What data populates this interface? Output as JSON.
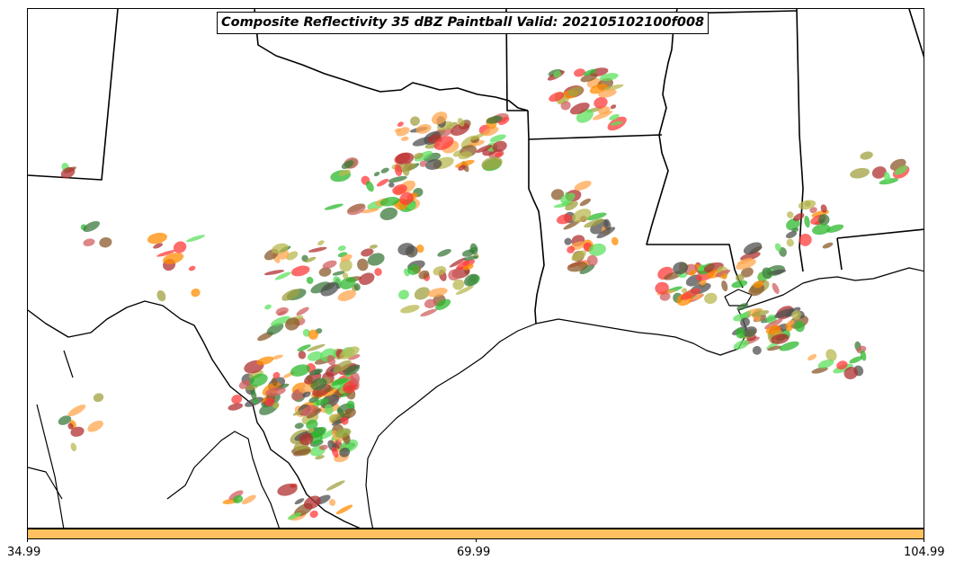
{
  "map": {
    "title": "Composite Reflectivity 35 dBZ Paintball Valid: 202105102100f008",
    "field": "Composite Reflectivity",
    "threshold_dbz": 35,
    "valid_time": "202105102100",
    "forecast_hour": "f008",
    "region": "Texas and Louisiana Gulf Coast",
    "basemap": "state boundaries and coastline",
    "member_colors": [
      "#ff3b3b",
      "#ff8c00",
      "#ffa64d",
      "#2db82d",
      "#5ee05e",
      "#a0a040",
      "#b8b850",
      "#3c7a3c",
      "#b03030",
      "#505050",
      "#d06060",
      "#8b5a2b"
    ]
  },
  "colorbar": {
    "color": "#ffc060",
    "ticks": [
      "34.99",
      "69.99",
      "104.99"
    ]
  }
}
